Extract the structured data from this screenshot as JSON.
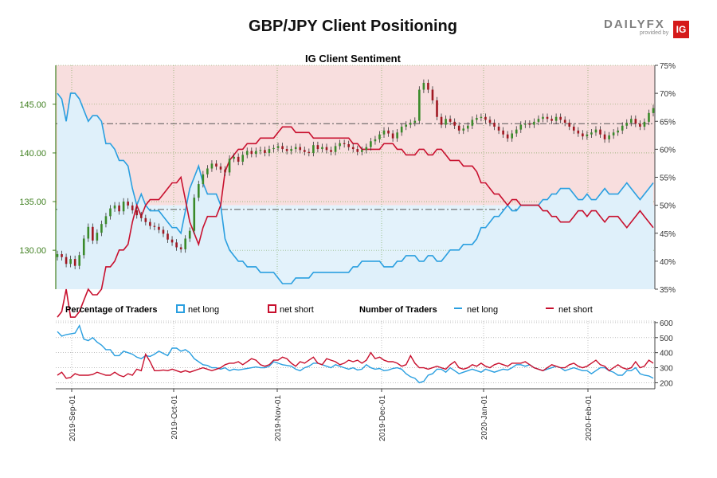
{
  "title": "GBP/JPY Client Positioning",
  "logo": {
    "wordmark": "DAILYFX",
    "sub": "provided by",
    "badge": "IG"
  },
  "colors": {
    "net_long": "#2a9fe0",
    "net_short": "#c8102e",
    "candle_up": "#3a8a2a",
    "candle_down": "#a01822",
    "short_zone": "#f8dede",
    "long_zone": "#e3f2fb",
    "left_axis": "#3f7f1f",
    "grid": "#6b9b45"
  },
  "chart_data": [
    {
      "type": "candlestick",
      "title": "IG Client Sentiment",
      "price_axis": {
        "ticks": [
          130,
          135,
          140,
          145
        ],
        "tick_labels": [
          "130.00",
          "135.00",
          "140.00",
          "145.00"
        ],
        "range": [
          126,
          149
        ]
      },
      "sentiment_axis": {
        "ticks": [
          35,
          40,
          45,
          50,
          55,
          60,
          65,
          70,
          75
        ],
        "tick_labels": [
          "35%",
          "40%",
          "45%",
          "50%",
          "55%",
          "60%",
          "65%",
          "70%",
          "75%"
        ],
        "range": [
          35,
          75
        ]
      },
      "reference_price_lines": [
        134.2,
        143.0
      ],
      "candle_closes": [
        129.6,
        129.3,
        128.6,
        129.1,
        128.4,
        129.5,
        131.2,
        132.4,
        131.0,
        131.8,
        132.7,
        133.5,
        134.3,
        134.6,
        134.0,
        135.0,
        134.6,
        134.1,
        133.6,
        133.3,
        132.9,
        132.5,
        132.4,
        132.1,
        131.7,
        131.1,
        130.8,
        130.3,
        130.1,
        131.2,
        132.0,
        135.4,
        136.8,
        137.8,
        138.4,
        138.9,
        138.6,
        138.3,
        138.0,
        139.4,
        139.6,
        139.1,
        139.8,
        140.2,
        139.9,
        140.2,
        140.3,
        140.0,
        140.4,
        140.5,
        140.7,
        140.4,
        140.2,
        140.4,
        140.6,
        140.3,
        140.1,
        140.0,
        140.8,
        140.4,
        140.6,
        140.3,
        140.1,
        140.7,
        141.0,
        140.9,
        140.6,
        140.4,
        140.1,
        140.3,
        140.6,
        141.2,
        141.4,
        141.9,
        142.3,
        142.0,
        141.5,
        142.1,
        142.7,
        142.9,
        143.1,
        143.3,
        146.5,
        147.2,
        146.5,
        145.4,
        143.7,
        142.9,
        143.5,
        143.2,
        142.8,
        142.3,
        142.5,
        142.8,
        143.4,
        143.6,
        143.7,
        143.4,
        143.1,
        142.7,
        142.3,
        141.9,
        141.5,
        142.0,
        142.4,
        142.9,
        143.0,
        142.9,
        143.2,
        143.5,
        143.7,
        143.5,
        143.3,
        143.7,
        143.4,
        143.1,
        142.7,
        142.3,
        142.0,
        141.7,
        141.9,
        142.1,
        142.4,
        141.9,
        141.4,
        141.8,
        142.1,
        142.3,
        142.8,
        143.1,
        143.5,
        143.0,
        142.7,
        143.2,
        144.1,
        144.6
      ],
      "series": [
        {
          "name": "net long",
          "sentiment_pct": [
            70,
            69,
            65,
            70,
            70,
            69,
            67,
            65,
            66,
            66,
            65,
            61,
            61,
            60,
            58,
            58,
            57,
            53,
            50,
            52,
            50,
            49,
            49,
            49,
            48,
            47,
            46,
            46,
            45,
            49,
            53,
            55,
            57,
            54,
            52,
            52,
            52,
            50,
            44,
            42,
            41,
            40,
            40,
            39,
            39,
            39,
            38,
            38,
            38,
            38,
            37,
            36,
            36,
            36,
            37,
            37,
            37,
            37,
            38,
            38,
            38,
            38,
            38,
            38,
            38,
            38,
            38,
            39,
            39,
            40,
            40,
            40,
            40,
            40,
            39,
            39,
            39,
            40,
            40,
            41,
            41,
            41,
            40,
            40,
            41,
            41,
            40,
            40,
            41,
            42,
            42,
            42,
            43,
            43,
            43,
            44,
            46,
            46,
            47,
            48,
            48,
            49,
            50,
            49,
            49,
            50,
            50,
            50,
            50,
            50,
            51,
            51,
            52,
            52,
            53,
            53,
            53,
            52,
            51,
            51,
            52,
            51,
            51,
            52,
            53,
            52,
            52,
            52,
            53,
            54,
            53,
            52,
            51,
            52,
            53,
            54
          ]
        },
        {
          "name": "net short",
          "sentiment_pct": [
            30,
            31,
            35,
            30,
            30,
            31,
            33,
            35,
            34,
            34,
            35,
            39,
            39,
            40,
            42,
            42,
            43,
            47,
            50,
            48,
            50,
            51,
            51,
            51,
            52,
            53,
            54,
            54,
            55,
            51,
            47,
            45,
            43,
            46,
            48,
            48,
            48,
            50,
            56,
            58,
            59,
            60,
            60,
            61,
            61,
            61,
            62,
            62,
            62,
            62,
            63,
            64,
            64,
            64,
            63,
            63,
            63,
            63,
            62,
            62,
            62,
            62,
            62,
            62,
            62,
            62,
            62,
            61,
            61,
            60,
            60,
            60,
            60,
            60,
            61,
            61,
            61,
            60,
            60,
            59,
            59,
            59,
            60,
            60,
            59,
            59,
            60,
            60,
            59,
            58,
            58,
            58,
            57,
            57,
            57,
            56,
            54,
            54,
            53,
            52,
            52,
            51,
            50,
            51,
            51,
            50,
            50,
            50,
            50,
            50,
            49,
            49,
            48,
            48,
            47,
            47,
            47,
            48,
            49,
            49,
            48,
            49,
            49,
            48,
            47,
            48,
            48,
            48,
            47,
            46,
            47,
            48,
            49,
            48,
            47,
            46
          ]
        }
      ]
    },
    {
      "type": "line",
      "y_axis": {
        "ticks": [
          200,
          300,
          400,
          500,
          600
        ],
        "tick_labels": [
          "200",
          "300",
          "400",
          "500",
          "600"
        ],
        "range": [
          160,
          610
        ]
      },
      "x_ticks": [
        "2019-Sep-01",
        "2019-Oct-01",
        "2019-Nov-01",
        "2019-Dec-01",
        "2020-Jan-01",
        "2020-Feb-01"
      ],
      "series": [
        {
          "name": "net long",
          "values": [
            540,
            510,
            520,
            525,
            530,
            580,
            490,
            480,
            500,
            470,
            450,
            420,
            420,
            380,
            380,
            410,
            400,
            390,
            370,
            360,
            380,
            375,
            390,
            410,
            395,
            380,
            430,
            430,
            410,
            420,
            400,
            360,
            340,
            320,
            315,
            300,
            300,
            290,
            300,
            280,
            290,
            285,
            290,
            295,
            300,
            305,
            300,
            300,
            310,
            340,
            330,
            320,
            315,
            310,
            290,
            280,
            300,
            310,
            330,
            330,
            320,
            310,
            300,
            320,
            310,
            300,
            290,
            300,
            285,
            290,
            320,
            300,
            290,
            295,
            280,
            285,
            295,
            300,
            290,
            260,
            240,
            230,
            200,
            210,
            250,
            260,
            290,
            290,
            270,
            300,
            280,
            260,
            270,
            280,
            290,
            280,
            270,
            290,
            280,
            270,
            280,
            290,
            285,
            300,
            320,
            320,
            310,
            320,
            300,
            290,
            280,
            290,
            300,
            310,
            300,
            280,
            290,
            300,
            290,
            280,
            280,
            260,
            280,
            300,
            300,
            280,
            270,
            250,
            250,
            280,
            280,
            300,
            260,
            250,
            245,
            230
          ]
        },
        {
          "name": "net short",
          "values": [
            250,
            270,
            230,
            235,
            260,
            250,
            250,
            250,
            255,
            270,
            260,
            250,
            250,
            270,
            250,
            240,
            260,
            250,
            290,
            280,
            390,
            340,
            280,
            280,
            285,
            280,
            290,
            280,
            270,
            280,
            270,
            280,
            290,
            300,
            290,
            280,
            290,
            300,
            320,
            330,
            330,
            340,
            320,
            340,
            360,
            350,
            320,
            310,
            320,
            350,
            350,
            370,
            360,
            330,
            310,
            340,
            330,
            350,
            370,
            330,
            320,
            360,
            350,
            340,
            320,
            330,
            350,
            340,
            350,
            330,
            350,
            400,
            360,
            370,
            350,
            340,
            340,
            330,
            310,
            320,
            380,
            330,
            300,
            300,
            290,
            300,
            310,
            300,
            290,
            320,
            340,
            300,
            290,
            300,
            320,
            310,
            330,
            310,
            300,
            320,
            330,
            320,
            310,
            330,
            330,
            330,
            340,
            320,
            300,
            290,
            280,
            300,
            320,
            310,
            300,
            300,
            320,
            330,
            310,
            300,
            310,
            330,
            350,
            320,
            310,
            280,
            300,
            320,
            300,
            290,
            300,
            340,
            300,
            310,
            350,
            330
          ]
        }
      ]
    }
  ],
  "legend": {
    "pct_title": "Percentage of Traders",
    "pct_long": "net long",
    "pct_short": "net short",
    "num_title": "Number of Traders",
    "num_long": "net long",
    "num_short": "net short"
  }
}
